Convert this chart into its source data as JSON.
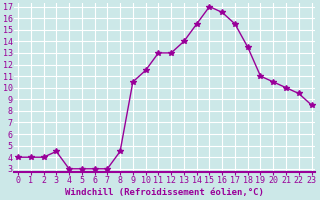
{
  "x": [
    0,
    1,
    2,
    3,
    4,
    5,
    6,
    7,
    8,
    9,
    10,
    11,
    12,
    13,
    14,
    15,
    16,
    17,
    18,
    19,
    20,
    21,
    22,
    23
  ],
  "y": [
    4,
    4,
    4,
    4.5,
    3,
    3,
    3,
    3,
    4.5,
    10.5,
    11.5,
    13,
    13,
    14,
    15.5,
    17,
    16.5,
    15.5,
    13.5,
    11,
    10.5,
    10,
    9.5,
    8.5
  ],
  "xlabel": "Windchill (Refroidissement éolien,°C)",
  "ylim_min": 3,
  "ylim_max": 17,
  "xlim_min": 0,
  "xlim_max": 23,
  "yticks": [
    3,
    4,
    5,
    6,
    7,
    8,
    9,
    10,
    11,
    12,
    13,
    14,
    15,
    16,
    17
  ],
  "xticks": [
    0,
    1,
    2,
    3,
    4,
    5,
    6,
    7,
    8,
    9,
    10,
    11,
    12,
    13,
    14,
    15,
    16,
    17,
    18,
    19,
    20,
    21,
    22,
    23
  ],
  "line_color": "#990099",
  "marker": "*",
  "marker_size": 4,
  "bg_color": "#cce8e8",
  "grid_color": "#ffffff",
  "tick_color": "#990099",
  "label_color": "#990099",
  "tick_fontsize": 6.0,
  "xlabel_fontsize": 6.5,
  "linewidth": 1.0
}
